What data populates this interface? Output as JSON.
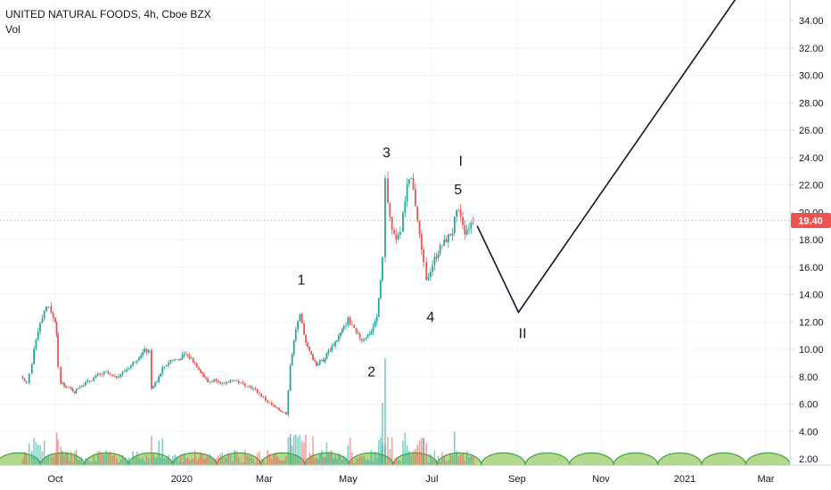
{
  "header": {
    "title": "UNITED NATURAL FOODS, 4h, Cboe BZX",
    "indicator": "Vol"
  },
  "price_tag": {
    "value": "19.40",
    "color": "#ef5350"
  },
  "colors": {
    "up": "#26a69a",
    "down": "#ef5350",
    "path": "#131722",
    "arcs_fill": "#9ccc65",
    "arcs_stroke": "#43a047"
  },
  "chart_data": {
    "type": "line",
    "y_axis": {
      "ticks": [
        "2.00",
        "4.00",
        "6.00",
        "8.00",
        "10.00",
        "12.00",
        "14.00",
        "16.00",
        "18.00",
        "20.00",
        "22.00",
        "24.00",
        "26.00",
        "28.00",
        "30.00",
        "32.00",
        "34.00"
      ],
      "ylim": [
        1.6,
        35.6
      ],
      "position": "right"
    },
    "x_axis": {
      "ticks": [
        "Oct",
        "2020",
        "Mar",
        "May",
        "Jul",
        "Sep",
        "Nov",
        "2021",
        "Mar"
      ]
    },
    "series": [
      {
        "values": [
          {
            "d": "2019-09-06",
            "v": 8.0
          },
          {
            "d": "2019-09-10",
            "v": 7.5
          },
          {
            "d": "2019-09-12",
            "v": 8.2
          },
          {
            "d": "2019-09-14",
            "v": 9.0
          },
          {
            "d": "2019-09-17",
            "v": 10.8
          },
          {
            "d": "2019-09-20",
            "v": 12.0
          },
          {
            "d": "2019-09-23",
            "v": 12.8
          },
          {
            "d": "2019-09-26",
            "v": 13.3
          },
          {
            "d": "2019-09-28",
            "v": 12.6
          },
          {
            "d": "2019-10-01",
            "v": 12.0
          },
          {
            "d": "2019-10-02",
            "v": 11.2
          },
          {
            "d": "2019-10-03",
            "v": 8.6
          },
          {
            "d": "2019-10-05",
            "v": 7.6
          },
          {
            "d": "2019-10-10",
            "v": 7.2
          },
          {
            "d": "2019-10-15",
            "v": 6.9
          },
          {
            "d": "2019-10-20",
            "v": 7.4
          },
          {
            "d": "2019-10-26",
            "v": 7.7
          },
          {
            "d": "2019-11-01",
            "v": 8.1
          },
          {
            "d": "2019-11-07",
            "v": 8.3
          },
          {
            "d": "2019-11-13",
            "v": 7.9
          },
          {
            "d": "2019-11-19",
            "v": 8.3
          },
          {
            "d": "2019-11-25",
            "v": 8.8
          },
          {
            "d": "2019-12-01",
            "v": 9.5
          },
          {
            "d": "2019-12-05",
            "v": 9.9
          },
          {
            "d": "2019-12-08",
            "v": 9.8
          },
          {
            "d": "2019-12-10",
            "v": 7.2
          },
          {
            "d": "2019-12-14",
            "v": 7.6
          },
          {
            "d": "2019-12-18",
            "v": 8.6
          },
          {
            "d": "2019-12-24",
            "v": 9.2
          },
          {
            "d": "2019-12-30",
            "v": 9.3
          },
          {
            "d": "2020-01-04",
            "v": 9.6
          },
          {
            "d": "2020-01-08",
            "v": 9.3
          },
          {
            "d": "2020-01-12",
            "v": 8.8
          },
          {
            "d": "2020-01-16",
            "v": 8.2
          },
          {
            "d": "2020-01-20",
            "v": 7.6
          },
          {
            "d": "2020-01-26",
            "v": 7.8
          },
          {
            "d": "2020-02-01",
            "v": 7.4
          },
          {
            "d": "2020-02-07",
            "v": 7.8
          },
          {
            "d": "2020-02-13",
            "v": 7.5
          },
          {
            "d": "2020-02-19",
            "v": 7.3
          },
          {
            "d": "2020-02-25",
            "v": 6.9
          },
          {
            "d": "2020-03-02",
            "v": 6.3
          },
          {
            "d": "2020-03-08",
            "v": 5.8
          },
          {
            "d": "2020-03-13",
            "v": 5.5
          },
          {
            "d": "2020-03-17",
            "v": 5.3
          },
          {
            "d": "2020-03-20",
            "v": 8.8
          },
          {
            "d": "2020-03-24",
            "v": 11.5
          },
          {
            "d": "2020-03-27",
            "v": 12.4
          },
          {
            "d": "2020-03-30",
            "v": 11.0
          },
          {
            "d": "2020-04-03",
            "v": 9.8
          },
          {
            "d": "2020-04-08",
            "v": 8.9
          },
          {
            "d": "2020-04-13",
            "v": 9.2
          },
          {
            "d": "2020-04-18",
            "v": 10.0
          },
          {
            "d": "2020-04-23",
            "v": 10.7
          },
          {
            "d": "2020-04-28",
            "v": 11.6
          },
          {
            "d": "2020-05-01",
            "v": 12.2
          },
          {
            "d": "2020-05-04",
            "v": 11.7
          },
          {
            "d": "2020-05-07",
            "v": 11.1
          },
          {
            "d": "2020-05-11",
            "v": 10.7
          },
          {
            "d": "2020-05-14",
            "v": 10.9
          },
          {
            "d": "2020-05-18",
            "v": 11.3
          },
          {
            "d": "2020-05-22",
            "v": 12.3
          },
          {
            "d": "2020-05-26",
            "v": 16.5
          },
          {
            "d": "2020-05-28",
            "v": 22.7
          },
          {
            "d": "2020-05-30",
            "v": 20.6
          },
          {
            "d": "2020-06-02",
            "v": 18.6
          },
          {
            "d": "2020-06-05",
            "v": 17.8
          },
          {
            "d": "2020-06-08",
            "v": 18.6
          },
          {
            "d": "2020-06-10",
            "v": 19.8
          },
          {
            "d": "2020-06-13",
            "v": 21.8
          },
          {
            "d": "2020-06-16",
            "v": 22.4
          },
          {
            "d": "2020-06-19",
            "v": 20.6
          },
          {
            "d": "2020-06-22",
            "v": 18.2
          },
          {
            "d": "2020-06-25",
            "v": 16.5
          },
          {
            "d": "2020-06-27",
            "v": 15.0
          },
          {
            "d": "2020-06-30",
            "v": 15.8
          },
          {
            "d": "2020-07-03",
            "v": 16.6
          },
          {
            "d": "2020-07-07",
            "v": 17.4
          },
          {
            "d": "2020-07-10",
            "v": 17.8
          },
          {
            "d": "2020-07-13",
            "v": 18.2
          },
          {
            "d": "2020-07-16",
            "v": 18.6
          },
          {
            "d": "2020-07-19",
            "v": 20.2
          },
          {
            "d": "2020-07-22",
            "v": 19.8
          },
          {
            "d": "2020-07-25",
            "v": 18.6
          },
          {
            "d": "2020-07-28",
            "v": 19.0
          },
          {
            "d": "2020-07-31",
            "v": 19.4
          }
        ]
      }
    ],
    "projection": [
      {
        "d": "2020-08-03",
        "v": 19.0
      },
      {
        "d": "2020-09-02",
        "v": 12.7
      },
      {
        "d": "2021-02-10",
        "v": 36.0
      }
    ],
    "wave_labels": [
      {
        "text": "1",
        "d": "2020-03-28",
        "v": 15.1
      },
      {
        "text": "2",
        "d": "2020-05-18",
        "v": 8.4
      },
      {
        "text": "3",
        "d": "2020-05-29",
        "v": 24.4
      },
      {
        "text": "4",
        "d": "2020-06-30",
        "v": 12.4
      },
      {
        "text": "5",
        "d": "2020-07-20",
        "v": 21.7
      },
      {
        "text": "I",
        "d": "2020-07-22",
        "v": 23.8
      },
      {
        "text": "II",
        "d": "2020-09-05",
        "v": 11.2
      }
    ],
    "volume": {
      "arcs_start": "2019-09-01",
      "arcs_end": "2021-04-15",
      "arc_count": 18
    }
  }
}
